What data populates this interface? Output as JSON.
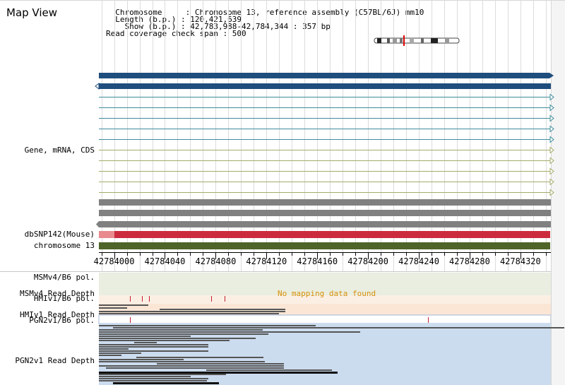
{
  "header": {
    "title": "Map View",
    "info_lines": [
      "  Chromosome     : Chromosome 13, reference assembly (C57BL/6J) mm10",
      "  Length (b.p.) : 120,421,639",
      "    Show (b.p.) : 42,783,988-42,784,344 : 357 bp",
      "Read coverage check span : 500"
    ]
  },
  "tracks": {
    "gene_label": "Gene, mRNA, CDS",
    "snp_label": "dbSNP142(Mouse)",
    "chromosome_label": "chromosome 13",
    "msm_pol_label": "MSMv4/B6 pol.",
    "msm_depth_label": "MSMv4 Read Depth",
    "hmi_pol_label": "HMIv1/B6 pol.",
    "hmi_depth_label": "HMIv1 Read Depth",
    "pgn_pol_label": "PGN2v1/B6 pol.",
    "pgn_depth_label": "PGN2v1 Read Depth",
    "no_data_message": "No mapping data found"
  },
  "scale": {
    "ticks": [
      "42784000",
      "42784040",
      "42784080",
      "42784120",
      "42784160",
      "42784200",
      "42784240",
      "42784280",
      "42784320"
    ]
  },
  "colors": {
    "gene_dark": "#1f4e7e",
    "mrna_teal": "#3e8c9c",
    "mrna_olive": "#a4ab6a",
    "gray_bar": "#808080",
    "snp_red": "#cc2b3e",
    "snp_pink": "#e88a8e",
    "chromosome_green": "#4e6428",
    "msm_bg": "#eaeee0",
    "hmi_bg": "#fbe6d6",
    "pgn_bg": "#ccdcef"
  }
}
